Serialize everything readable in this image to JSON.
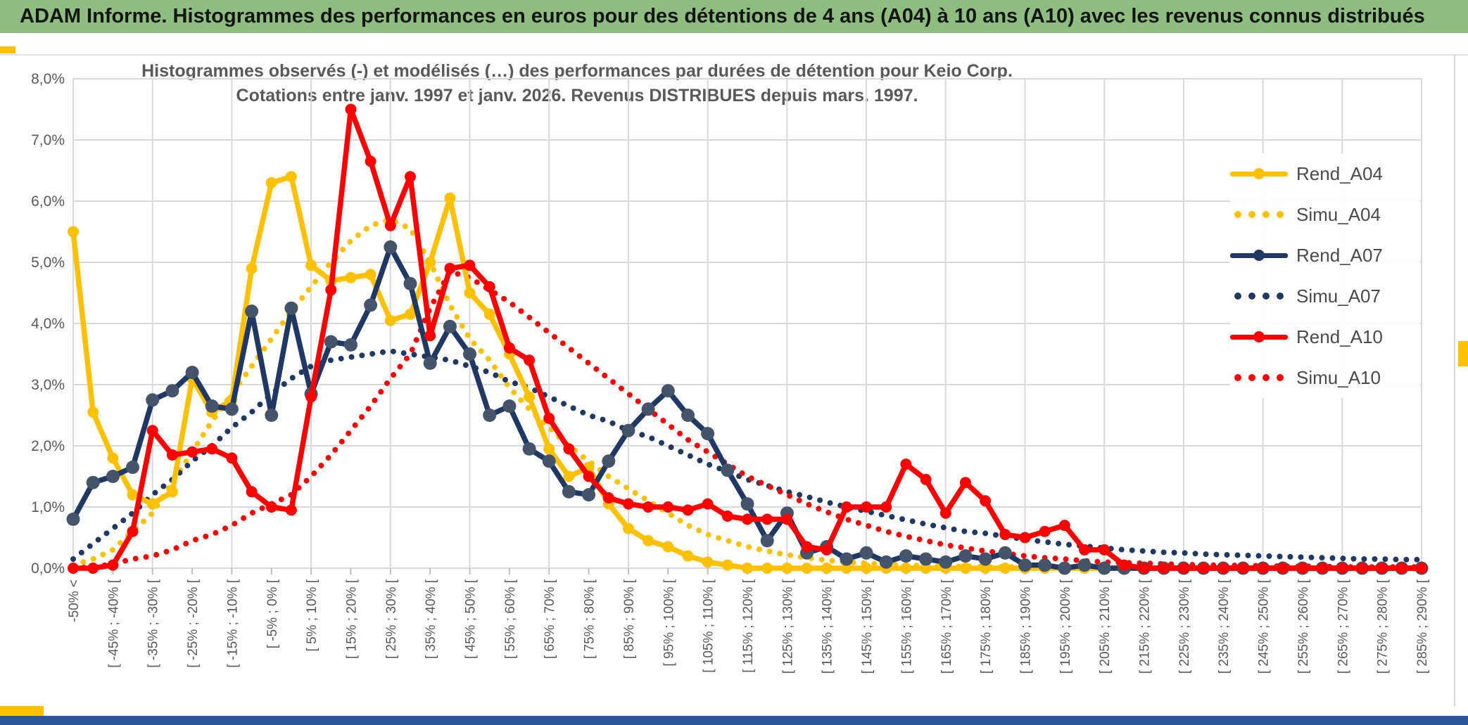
{
  "window": {
    "header_title": "ADAM Informe. Histogrammes des performances en euros pour des détentions de 4 ans (A04) à 10 ans (A10) avec les revenus connus distribués",
    "header_bg": "#8EBE7F",
    "bottom_bar_color": "#2B579A",
    "accent_gold": "#FFC000"
  },
  "chart": {
    "title_line1": "Histogrammes observés (-) et modélisés (…) des performances par durées de détention pour Keio Corp.",
    "title_line2": "Cotations entre janv. 1997 et janv. 2026. Revenus DISTRIBUES depuis mars. 1997."
  },
  "legend": {
    "items": [
      {
        "label": "Rend_A04",
        "color": "#FFC000",
        "style": "solid"
      },
      {
        "label": "Simu_A04",
        "color": "#FFC000",
        "style": "dotted"
      },
      {
        "label": "Rend_A07",
        "color": "#1F3864",
        "style": "solid"
      },
      {
        "label": "Simu_A07",
        "color": "#1F3864",
        "style": "dotted"
      },
      {
        "label": "Rend_A10",
        "color": "#FF0000",
        "style": "solid"
      },
      {
        "label": "Simu_A10",
        "color": "#FF0000",
        "style": "dotted"
      }
    ]
  },
  "chart_data": {
    "type": "line",
    "bins": 69,
    "bin_width_pct": 5,
    "x_label_every_bins": 2,
    "grid": true,
    "legend_position": "right-overlay",
    "ylim": [
      0,
      8
    ],
    "y_unit": "percent",
    "y_tick_labels": [
      "8,0%",
      "7,0%",
      "6,0%",
      "5,0%",
      "4,0%",
      "3,0%",
      "2,0%",
      "1,0%",
      "0,0%"
    ],
    "x_labels": [
      "-50% <",
      "[ -45% ; -40% [",
      "[ -35% ; -30% [",
      "[ -25% ; -20% [",
      "[ -15% ; -10% [",
      "[ -5% ; 0% [",
      "[ 5% ; 10% [",
      "[ 15% ; 20% [",
      "[ 25% ; 30% [",
      "[ 35% ; 40% [",
      "[ 45% ; 50% [",
      "[ 55% ; 60% [",
      "[ 65% ; 70% [",
      "[ 75% ; 80% [",
      "[ 85% ; 90% [",
      "[ 95% ; 100% [",
      "[ 105% ; 110% [",
      "[ 115% ; 120% [",
      "[ 125% ; 130% [",
      "[ 135% ; 140% [",
      "[ 145% ; 150% [",
      "[ 155% ; 160% [",
      "[ 165% ; 170% [",
      "[ 175% ; 180% [",
      "[ 185% ; 190% [",
      "[ 195% ; 200% [",
      "[ 205% ; 210% [",
      "[ 215% ; 220% [",
      "[ 225% ; 230% [",
      "[ 235% ; 240% [",
      "[ 245% ; 250% [",
      "[ 255% ; 260% [",
      "[ 265% ; 270% [",
      "[ 275% ; 280% [",
      "[ 285% ; 290% ["
    ],
    "series": [
      {
        "name": "Rend_A04",
        "style": "solid",
        "color": "#FFC000",
        "marker_color": "#FFC000",
        "values": [
          5.5,
          2.55,
          1.8,
          1.2,
          1.05,
          1.25,
          3.1,
          2.55,
          2.75,
          4.9,
          6.3,
          6.4,
          4.95,
          4.7,
          4.75,
          4.8,
          4.05,
          4.15,
          5.0,
          6.05,
          4.5,
          4.15,
          3.5,
          2.8,
          1.95,
          1.5,
          1.65,
          1.05,
          0.65,
          0.45,
          0.35,
          0.2,
          0.1,
          0.05,
          0,
          0,
          0,
          0,
          0,
          0,
          0,
          0,
          0,
          0,
          0,
          0,
          0,
          0,
          0,
          0,
          0,
          0,
          0,
          0,
          0,
          0,
          0,
          0,
          0,
          0,
          0,
          0,
          0,
          0,
          0,
          0,
          0,
          0,
          0
        ]
      },
      {
        "name": "Simu_A04",
        "style": "dotted",
        "color": "#FFC000",
        "values": [
          0.05,
          0.15,
          0.3,
          0.6,
          0.9,
          1.4,
          1.9,
          2.4,
          2.85,
          3.3,
          3.75,
          4.2,
          4.6,
          5.0,
          5.35,
          5.6,
          5.7,
          5.55,
          5.0,
          4.3,
          3.75,
          3.4,
          2.95,
          2.6,
          2.3,
          2.0,
          1.75,
          1.5,
          1.3,
          1.1,
          0.9,
          0.7,
          0.55,
          0.45,
          0.35,
          0.28,
          0.22,
          0.17,
          0.13,
          0.1,
          0.08,
          0.06,
          0.05,
          0.04,
          0.03,
          0.03,
          0.02,
          0.02,
          0.02,
          0.01,
          0.01,
          0.01,
          0.01,
          0.01,
          0.01,
          0,
          0,
          0,
          0,
          0,
          0,
          0,
          0,
          0,
          0,
          0,
          0,
          0,
          0
        ]
      },
      {
        "name": "Rend_A07",
        "style": "solid",
        "color": "#1F3864",
        "marker_color": "#44546A",
        "values": [
          0.8,
          1.4,
          1.5,
          1.65,
          2.75,
          2.9,
          3.2,
          2.65,
          2.6,
          4.2,
          2.5,
          4.25,
          2.85,
          3.7,
          3.65,
          4.3,
          5.25,
          4.65,
          3.35,
          3.95,
          3.5,
          2.5,
          2.65,
          1.95,
          1.75,
          1.25,
          1.2,
          1.75,
          2.25,
          2.6,
          2.9,
          2.5,
          2.2,
          1.6,
          1.05,
          0.45,
          0.9,
          0.25,
          0.35,
          0.15,
          0.25,
          0.1,
          0.2,
          0.15,
          0.1,
          0.2,
          0.15,
          0.25,
          0.05,
          0.05,
          0,
          0.05,
          0,
          0,
          0,
          0,
          0,
          0,
          0,
          0,
          0,
          0,
          0,
          0,
          0,
          0,
          0,
          0,
          0
        ]
      },
      {
        "name": "Simu_A07",
        "style": "dotted",
        "color": "#1F3864",
        "values": [
          0.15,
          0.4,
          0.65,
          0.9,
          1.2,
          1.45,
          1.75,
          2.0,
          2.3,
          2.55,
          2.85,
          3.1,
          3.3,
          3.4,
          3.45,
          3.5,
          3.55,
          3.5,
          3.45,
          3.4,
          3.3,
          3.2,
          3.05,
          2.95,
          2.8,
          2.65,
          2.5,
          2.4,
          2.25,
          2.15,
          2.0,
          1.85,
          1.7,
          1.58,
          1.45,
          1.35,
          1.25,
          1.17,
          1.08,
          1.0,
          0.93,
          0.86,
          0.79,
          0.72,
          0.66,
          0.6,
          0.57,
          0.52,
          0.47,
          0.43,
          0.39,
          0.36,
          0.33,
          0.3,
          0.28,
          0.26,
          0.25,
          0.23,
          0.22,
          0.21,
          0.2,
          0.19,
          0.18,
          0.17,
          0.16,
          0.15,
          0.15,
          0.14,
          0.14
        ]
      },
      {
        "name": "Rend_A10",
        "style": "solid",
        "color": "#FF0000",
        "marker_color": "#FF0000",
        "values": [
          0,
          0,
          0.05,
          0.6,
          2.25,
          1.85,
          1.9,
          1.95,
          1.8,
          1.25,
          1.0,
          0.95,
          2.8,
          4.55,
          7.5,
          6.65,
          5.6,
          6.4,
          3.8,
          4.9,
          4.95,
          4.6,
          3.6,
          3.4,
          2.45,
          1.95,
          1.5,
          1.15,
          1.05,
          1.0,
          1.0,
          0.95,
          1.05,
          0.85,
          0.8,
          0.8,
          0.8,
          0.35,
          0.3,
          1.0,
          1.0,
          1.0,
          1.7,
          1.45,
          0.9,
          1.4,
          1.1,
          0.55,
          0.5,
          0.6,
          0.7,
          0.3,
          0.3,
          0.05,
          0,
          0,
          0,
          0,
          0,
          0,
          0,
          0,
          0,
          0,
          0,
          0,
          0,
          0,
          0
        ]
      },
      {
        "name": "Simu_A10",
        "style": "dotted",
        "color": "#FF0000",
        "values": [
          0,
          0.02,
          0.07,
          0.15,
          0.2,
          0.3,
          0.45,
          0.55,
          0.7,
          0.9,
          1.05,
          1.2,
          1.5,
          1.85,
          2.25,
          2.65,
          3.1,
          3.5,
          4.25,
          4.85,
          4.75,
          4.55,
          4.35,
          4.1,
          3.85,
          3.6,
          3.35,
          3.1,
          2.85,
          2.6,
          2.35,
          2.1,
          1.9,
          1.7,
          1.5,
          1.35,
          1.2,
          1.05,
          0.92,
          0.8,
          0.7,
          0.6,
          0.52,
          0.45,
          0.38,
          0.33,
          0.28,
          0.24,
          0.2,
          0.17,
          0.15,
          0.12,
          0.1,
          0.09,
          0.08,
          0.07,
          0.06,
          0.05,
          0.05,
          0.04,
          0.04,
          0.03,
          0.03,
          0.03,
          0.02,
          0.02,
          0.02,
          0.02,
          0.02
        ]
      }
    ]
  }
}
